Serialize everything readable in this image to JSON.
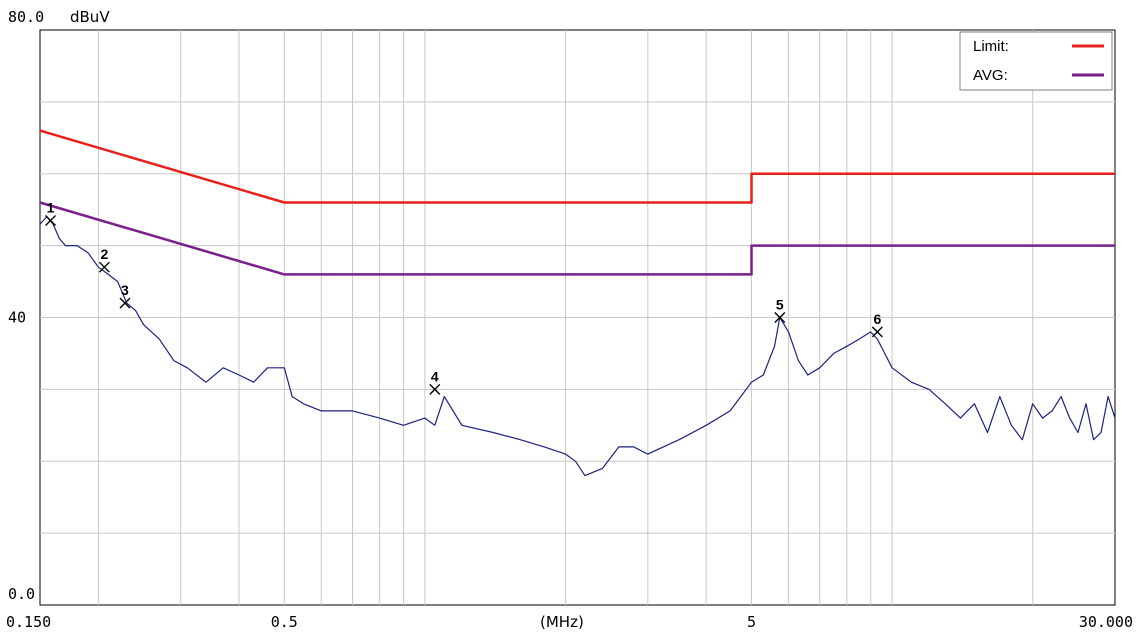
{
  "chart_data": {
    "type": "line",
    "x_scale": "log",
    "xlim": [
      0.15,
      30
    ],
    "ylim": [
      0,
      80
    ],
    "grid": true,
    "y_unit_label": "dBuV",
    "x_unit_label": "(MHz)",
    "y_ticks": [
      {
        "value": 80,
        "label": "80.0"
      },
      {
        "value": 40,
        "label": "40"
      },
      {
        "value": 0,
        "label": "0.0"
      }
    ],
    "x_ticks": [
      {
        "value": 0.15,
        "label": "0.150"
      },
      {
        "value": 0.5,
        "label": "0.5"
      },
      {
        "value": 5,
        "label": "5"
      },
      {
        "value": 30,
        "label": "30.000"
      }
    ],
    "legend": {
      "placement": "top-right",
      "entries": [
        {
          "label": "Limit:",
          "color": "#e8201c"
        },
        {
          "label": "AVG:",
          "color": "#7a1f8c"
        }
      ]
    },
    "series": [
      {
        "name": "Limit:",
        "color": "#e8201c",
        "x": [
          0.15,
          0.5,
          5,
          5,
          30
        ],
        "y": [
          66,
          56,
          56,
          60,
          60
        ]
      },
      {
        "name": "AVG:",
        "color": "#7a1f8c",
        "x": [
          0.15,
          0.5,
          5,
          5,
          30
        ],
        "y": [
          56,
          46,
          46,
          50,
          50
        ]
      },
      {
        "color": "#1a237e",
        "x": [
          0.15,
          0.155,
          0.16,
          0.165,
          0.17,
          0.18,
          0.19,
          0.2,
          0.21,
          0.22,
          0.23,
          0.24,
          0.25,
          0.27,
          0.29,
          0.31,
          0.34,
          0.37,
          0.4,
          0.43,
          0.46,
          0.5,
          0.52,
          0.55,
          0.6,
          0.7,
          0.8,
          0.9,
          1.0,
          1.05,
          1.1,
          1.2,
          1.4,
          1.6,
          1.8,
          2.0,
          2.1,
          2.2,
          2.4,
          2.6,
          2.8,
          3.0,
          3.5,
          4.0,
          4.5,
          5.0,
          5.3,
          5.6,
          5.75,
          6.0,
          6.3,
          6.6,
          7.0,
          7.5,
          8.0,
          8.5,
          9.0,
          9.3,
          10.0,
          11.0,
          12.0,
          13.0,
          14.0,
          15.0,
          16.0,
          17.0,
          18.0,
          19.0,
          20.0,
          21.0,
          22.0,
          23.0,
          24.0,
          25.0,
          26.0,
          27.0,
          28.0,
          29.0,
          30.0
        ],
        "y": [
          53,
          54,
          53,
          51,
          50,
          50,
          49,
          47,
          46,
          45,
          42,
          41,
          39,
          37,
          34,
          33,
          31,
          33,
          32,
          31,
          33,
          33,
          29,
          28,
          27,
          27,
          26,
          25,
          26,
          25,
          29,
          25,
          24,
          23,
          22,
          21,
          20,
          18,
          19,
          22,
          22,
          21,
          23,
          25,
          27,
          31,
          32,
          36,
          40,
          38,
          34,
          32,
          33,
          35,
          36,
          37,
          38,
          37,
          33,
          31,
          30,
          28,
          26,
          28,
          24,
          29,
          25,
          23,
          28,
          26,
          27,
          29,
          26,
          24,
          28,
          23,
          24,
          29,
          26
        ]
      }
    ],
    "markers": [
      {
        "label": "1",
        "x": 0.158,
        "y": 53.5
      },
      {
        "label": "2",
        "x": 0.206,
        "y": 47
      },
      {
        "label": "3",
        "x": 0.228,
        "y": 42
      },
      {
        "label": "4",
        "x": 1.05,
        "y": 30
      },
      {
        "label": "5",
        "x": 5.75,
        "y": 40
      },
      {
        "label": "6",
        "x": 9.3,
        "y": 38
      }
    ]
  }
}
